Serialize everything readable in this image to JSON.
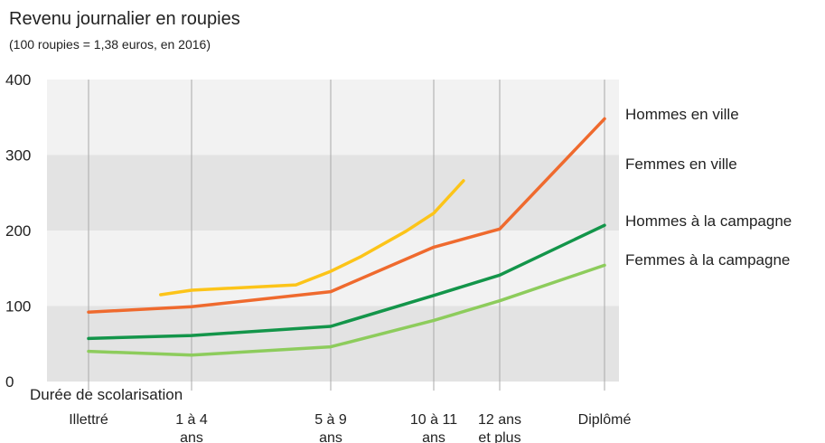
{
  "chart_data": {
    "type": "line",
    "title": "Revenu journalier en roupies",
    "subtitle": "(100 roupies = 1,38 euros, en 2016)",
    "xlabel": "Durée de scolarisation",
    "ylabel": "",
    "ylim": [
      0,
      400
    ],
    "yticks": [
      "0",
      "100",
      "200",
      "300",
      "400"
    ],
    "grid": "vertical lines at categories, alternating horizontal bands",
    "legend_placement": "right",
    "categories": [
      {
        "id": "illettre",
        "lines": [
          "Illettré"
        ]
      },
      {
        "id": "1-4",
        "lines": [
          "1 à 4",
          "ans"
        ]
      },
      {
        "id": "5-9",
        "lines": [
          "5 à 9",
          "ans"
        ]
      },
      {
        "id": "10-11",
        "lines": [
          "10 à 11",
          "ans"
        ]
      },
      {
        "id": "12plus",
        "lines": [
          "12 ans",
          "et plus"
        ]
      },
      {
        "id": "diplome",
        "lines": [
          "Diplômé"
        ]
      }
    ],
    "series": [
      {
        "name": "Hommes en ville",
        "color": "#ef6a2e",
        "points": [
          [
            0,
            92
          ],
          [
            1,
            99
          ],
          [
            2,
            119
          ],
          [
            3,
            178
          ],
          [
            4,
            202
          ],
          [
            5,
            348
          ]
        ]
      },
      {
        "name": "Femmes en ville",
        "color": "#fcc419",
        "points": [
          [
            0.7,
            115
          ],
          [
            1,
            121
          ],
          [
            1.75,
            128
          ],
          [
            2,
            146
          ],
          [
            2.3,
            166
          ],
          [
            2.73,
            199
          ],
          [
            3,
            223
          ],
          [
            3.45,
            266
          ]
        ]
      },
      {
        "name": "Hommes à la campagne",
        "color": "#13954a",
        "points": [
          [
            0,
            57
          ],
          [
            1,
            61
          ],
          [
            2,
            73
          ],
          [
            3,
            114
          ],
          [
            4,
            141
          ],
          [
            5,
            207
          ]
        ]
      },
      {
        "name": "Femmes à la campagne",
        "color": "#8dcc5c",
        "points": [
          [
            0,
            40
          ],
          [
            1,
            35
          ],
          [
            2,
            46
          ],
          [
            3,
            81
          ],
          [
            4,
            107
          ],
          [
            5,
            154
          ]
        ]
      }
    ],
    "legend": [
      {
        "label": "Hommes en ville",
        "series": 0
      },
      {
        "label": "Femmes en ville",
        "series": 1
      },
      {
        "label": "Hommes à la campagne",
        "series": 2
      },
      {
        "label": "Femmes à la campagne",
        "series": 3
      }
    ]
  },
  "colors": {
    "band_dark": "#e3e3e3",
    "band_light": "#f2f2f2",
    "gridline": "#a8a8a8"
  }
}
